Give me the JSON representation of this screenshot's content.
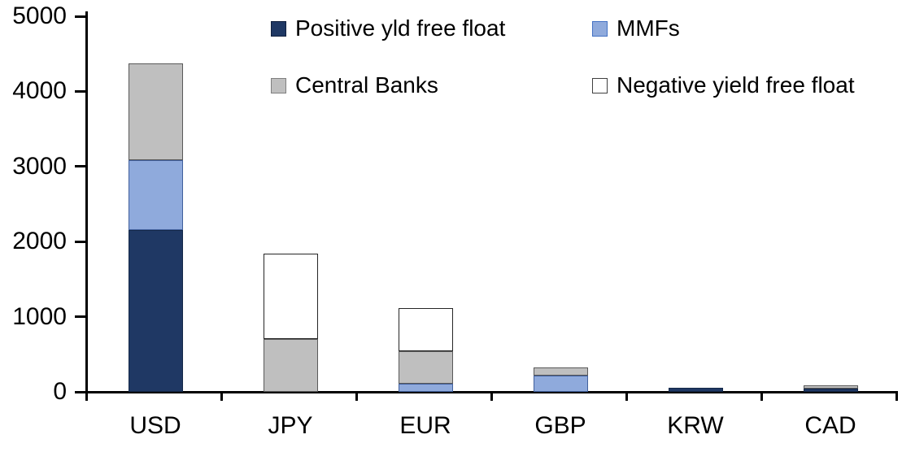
{
  "chart_data": {
    "type": "bar",
    "stacked": true,
    "title": "",
    "xlabel": "",
    "ylabel": "",
    "categories": [
      "USD",
      "JPY",
      "EUR",
      "GBP",
      "KRW",
      "CAD"
    ],
    "series": [
      {
        "name": "Positive yld free float",
        "color": "#1f3864",
        "border": "#142848",
        "swatch_border": "#0f1f3d",
        "values": [
          2150,
          0,
          0,
          0,
          50,
          40
        ]
      },
      {
        "name": "MMFs",
        "color": "#8faadc",
        "border": "#41609c",
        "swatch_border": "#4472c4",
        "values": [
          930,
          0,
          110,
          220,
          0,
          0
        ]
      },
      {
        "name": "Central Banks",
        "color": "#bfbfbf",
        "border": "#595959",
        "swatch_border": "#7f7f7f",
        "values": [
          1290,
          700,
          430,
          110,
          0,
          50
        ]
      },
      {
        "name": "Negative yield free float",
        "color": "#ffffff",
        "border": "#262626",
        "swatch_border": "#404040",
        "values": [
          0,
          1140,
          570,
          0,
          0,
          0
        ]
      }
    ],
    "totals_by_category": [
      4370,
      1840,
      1110,
      330,
      50,
      90
    ],
    "y_axis": {
      "min": 0,
      "max": 5000,
      "tick_step": 1000,
      "tick_labels": [
        "0",
        "1000",
        "2000",
        "3000",
        "4000",
        "5000"
      ]
    },
    "legend_position": "top-two-column",
    "grid": false,
    "axis_color": "#000000",
    "background_color": "#ffffff"
  }
}
